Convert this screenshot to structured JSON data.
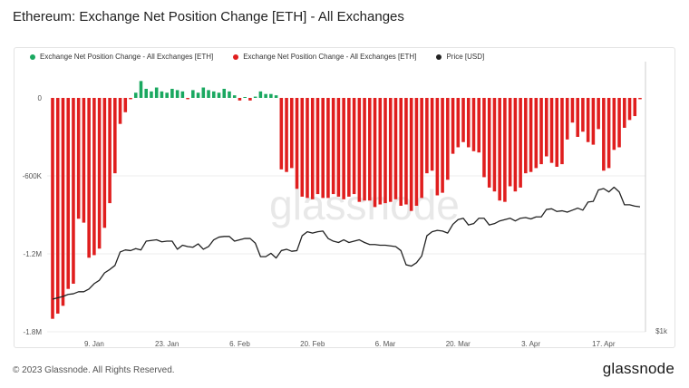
{
  "title": "Ethereum: Exchange Net Position Change [ETH] - All Exchanges",
  "footer": {
    "copyright": "© 2023 Glassnode. All Rights Reserved.",
    "brand": "glassnode"
  },
  "watermark": "glassnode",
  "colors": {
    "positive": "#1aa860",
    "negative": "#e01e1e",
    "price": "#222222",
    "grid": "#eeeeee",
    "axis_text": "#555555"
  },
  "chart_data": {
    "type": "bar",
    "legend": [
      {
        "label": "Exchange Net Position Change - All Exchanges [ETH]",
        "color": "#1aa860"
      },
      {
        "label": "Exchange Net Position Change - All Exchanges [ETH]",
        "color": "#e01e1e"
      },
      {
        "label": "Price [USD]",
        "color": "#222222"
      }
    ],
    "legend_position": "top-left",
    "grid": true,
    "x_ticks": [
      "9. Jan",
      "23. Jan",
      "6. Feb",
      "20. Feb",
      "6. Mar",
      "20. Mar",
      "3. Apr",
      "17. Apr"
    ],
    "y_left_ticks": [
      "0",
      "-600K",
      "-1.2M",
      "-1.8M"
    ],
    "y_left_tick_values": [
      0,
      -600000,
      -1200000,
      -1800000
    ],
    "y_right_ticks": [
      "$1k"
    ],
    "ylim": [
      -1800000,
      0
    ],
    "dates": [
      "2023-01-01",
      "2023-01-02",
      "2023-01-03",
      "2023-01-04",
      "2023-01-05",
      "2023-01-06",
      "2023-01-07",
      "2023-01-08",
      "2023-01-09",
      "2023-01-10",
      "2023-01-11",
      "2023-01-12",
      "2023-01-13",
      "2023-01-14",
      "2023-01-15",
      "2023-01-16",
      "2023-01-17",
      "2023-01-18",
      "2023-01-19",
      "2023-01-20",
      "2023-01-21",
      "2023-01-22",
      "2023-01-23",
      "2023-01-24",
      "2023-01-25",
      "2023-01-26",
      "2023-01-27",
      "2023-01-28",
      "2023-01-29",
      "2023-01-30",
      "2023-01-31",
      "2023-02-01",
      "2023-02-02",
      "2023-02-03",
      "2023-02-04",
      "2023-02-05",
      "2023-02-06",
      "2023-02-07",
      "2023-02-08",
      "2023-02-09",
      "2023-02-10",
      "2023-02-11",
      "2023-02-12",
      "2023-02-13",
      "2023-02-14",
      "2023-02-15",
      "2023-02-16",
      "2023-02-17",
      "2023-02-18",
      "2023-02-19",
      "2023-02-20",
      "2023-02-21",
      "2023-02-22",
      "2023-02-23",
      "2023-02-24",
      "2023-02-25",
      "2023-02-26",
      "2023-02-27",
      "2023-02-28",
      "2023-03-01",
      "2023-03-02",
      "2023-03-03",
      "2023-03-04",
      "2023-03-05",
      "2023-03-06",
      "2023-03-07",
      "2023-03-08",
      "2023-03-09",
      "2023-03-10",
      "2023-03-11",
      "2023-03-12",
      "2023-03-13",
      "2023-03-14",
      "2023-03-15",
      "2023-03-16",
      "2023-03-17",
      "2023-03-18",
      "2023-03-19",
      "2023-03-20",
      "2023-03-21",
      "2023-03-22",
      "2023-03-23",
      "2023-03-24",
      "2023-03-25",
      "2023-03-26",
      "2023-03-27",
      "2023-03-28",
      "2023-03-29",
      "2023-03-30",
      "2023-03-31",
      "2023-04-01",
      "2023-04-02",
      "2023-04-03",
      "2023-04-04",
      "2023-04-05",
      "2023-04-06",
      "2023-04-07",
      "2023-04-08",
      "2023-04-09",
      "2023-04-10",
      "2023-04-11",
      "2023-04-12",
      "2023-04-13",
      "2023-04-14",
      "2023-04-15",
      "2023-04-16",
      "2023-04-17",
      "2023-04-18",
      "2023-04-19",
      "2023-04-20",
      "2023-04-21",
      "2023-04-22",
      "2023-04-23",
      "2023-04-24"
    ],
    "net_position_change": [
      -1700000,
      -1660000,
      -1600000,
      -1470000,
      -1430000,
      -930000,
      -960000,
      -1230000,
      -1210000,
      -1160000,
      -1000000,
      -810000,
      -580000,
      -200000,
      -110000,
      -10000,
      40000,
      130000,
      70000,
      50000,
      80000,
      50000,
      40000,
      70000,
      60000,
      50000,
      -10000,
      60000,
      40000,
      80000,
      60000,
      50000,
      40000,
      70000,
      50000,
      20000,
      -20000,
      0,
      -20000,
      10000,
      50000,
      30000,
      30000,
      20000,
      -550000,
      -570000,
      -540000,
      -700000,
      -760000,
      -770000,
      -780000,
      -740000,
      -770000,
      -770000,
      -740000,
      -760000,
      -780000,
      -760000,
      -740000,
      -800000,
      -790000,
      -790000,
      -840000,
      -820000,
      -810000,
      -800000,
      -780000,
      -830000,
      -820000,
      -870000,
      -830000,
      -770000,
      -580000,
      -560000,
      -750000,
      -730000,
      -630000,
      -430000,
      -380000,
      -340000,
      -380000,
      -410000,
      -420000,
      -610000,
      -690000,
      -720000,
      -790000,
      -800000,
      -680000,
      -720000,
      -690000,
      -580000,
      -570000,
      -540000,
      -510000,
      -450000,
      -500000,
      -530000,
      -510000,
      -320000,
      -190000,
      -300000,
      -260000,
      -340000,
      -360000,
      -240000,
      -560000,
      -540000,
      -400000,
      -380000,
      -230000,
      -170000,
      -140000,
      -10000
    ],
    "price_usd": [
      1200,
      1210,
      1220,
      1235,
      1240,
      1255,
      1255,
      1275,
      1315,
      1340,
      1395,
      1420,
      1450,
      1550,
      1565,
      1560,
      1575,
      1565,
      1630,
      1635,
      1640,
      1625,
      1630,
      1630,
      1570,
      1600,
      1590,
      1585,
      1610,
      1570,
      1590,
      1640,
      1660,
      1665,
      1665,
      1630,
      1640,
      1650,
      1650,
      1615,
      1515,
      1515,
      1540,
      1505,
      1560,
      1570,
      1555,
      1560,
      1670,
      1700,
      1690,
      1700,
      1705,
      1650,
      1630,
      1620,
      1640,
      1620,
      1630,
      1640,
      1620,
      1605,
      1605,
      1600,
      1600,
      1595,
      1590,
      1560,
      1455,
      1445,
      1470,
      1520,
      1670,
      1700,
      1710,
      1705,
      1690,
      1755,
      1790,
      1800,
      1750,
      1760,
      1800,
      1800,
      1750,
      1760,
      1780,
      1790,
      1800,
      1780,
      1800,
      1805,
      1795,
      1810,
      1810,
      1865,
      1870,
      1850,
      1855,
      1845,
      1860,
      1875,
      1860,
      1920,
      1925,
      2010,
      2020,
      1995,
      2030,
      1995,
      1900,
      1900,
      1890,
      1885
    ]
  }
}
